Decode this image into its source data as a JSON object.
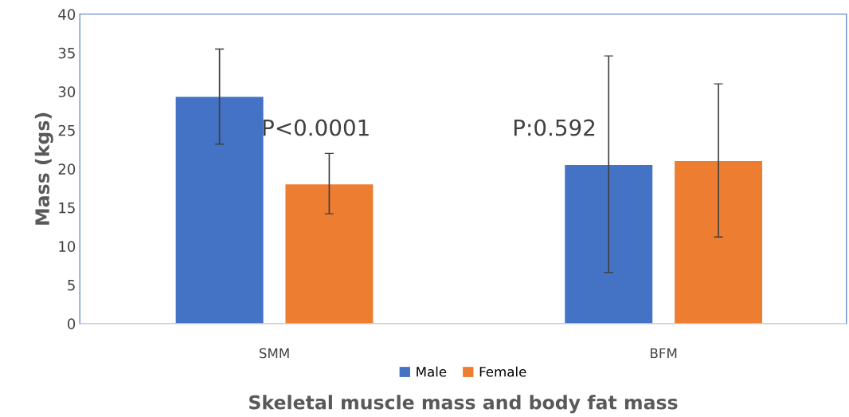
{
  "chart_data": {
    "type": "bar",
    "xlabel": "Skeletal muscle mass and body fat mass",
    "ylabel": "Mass (kgs)",
    "categories": [
      "SMM",
      "BFM"
    ],
    "series": [
      {
        "name": "Male",
        "color": "#4472c4",
        "values": [
          29.3,
          20.5
        ],
        "errors": [
          [
            23.2,
            35.5
          ],
          [
            6.6,
            34.6
          ]
        ]
      },
      {
        "name": "Female",
        "color": "#ed7d31",
        "values": [
          18.0,
          21.0
        ],
        "errors": [
          [
            14.2,
            22.0
          ],
          [
            11.2,
            31.0
          ]
        ]
      }
    ],
    "ylim": [
      0,
      40
    ],
    "yticks": [
      0,
      5,
      10,
      15,
      20,
      25,
      30,
      35,
      40
    ],
    "grid": false,
    "legend": "bottom",
    "annotations": [
      "P<0.0001",
      "P:0.592"
    ]
  }
}
